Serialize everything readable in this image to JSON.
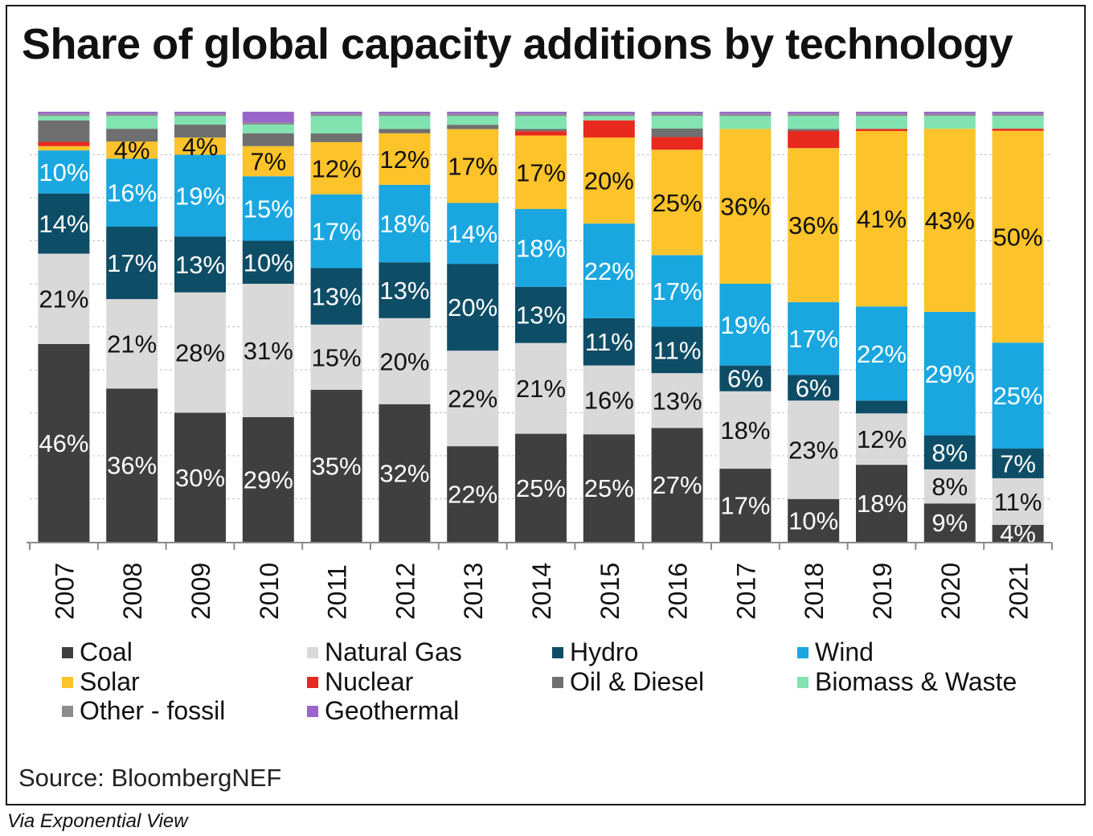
{
  "title": "Share of global capacity additions by technology",
  "source": "Source: BloombergNEF",
  "via": "Via Exponential View",
  "colors": {
    "Coal": "#3f3f3f",
    "Natural Gas": "#d9d9d9",
    "Hydro": "#0e4d66",
    "Wind": "#1aa7e0",
    "Solar": "#fdc32a",
    "Nuclear": "#e8291e",
    "Oil & Diesel": "#6f6f6f",
    "Biomass & Waste": "#82e3b1",
    "Other - fossil": "#8c8c8c",
    "Geothermal": "#9966cc"
  },
  "chart_data": {
    "type": "bar",
    "stacked": true,
    "title": "Share of global capacity additions by technology",
    "ylim": [
      0,
      100
    ],
    "grid": true,
    "legend": "bottom",
    "categories": [
      "2007",
      "2008",
      "2009",
      "2010",
      "2011",
      "2012",
      "2013",
      "2014",
      "2015",
      "2016",
      "2017",
      "2018",
      "2019",
      "2020",
      "2021"
    ],
    "series": [
      {
        "name": "Coal",
        "values": [
          46,
          36,
          30,
          29,
          35,
          32,
          22,
          25,
          25,
          27,
          17,
          10,
          18,
          9,
          4
        ]
      },
      {
        "name": "Natural Gas",
        "values": [
          21,
          21,
          28,
          31,
          15,
          20,
          22,
          21,
          16,
          13,
          18,
          23,
          12,
          8,
          11
        ]
      },
      {
        "name": "Hydro",
        "values": [
          14,
          17,
          13,
          10,
          13,
          13,
          20,
          13,
          11,
          11,
          6,
          6,
          3,
          8,
          7
        ]
      },
      {
        "name": "Wind",
        "values": [
          10,
          16,
          19,
          15,
          17,
          18,
          14,
          18,
          22,
          17,
          19,
          17,
          22,
          29,
          25
        ]
      },
      {
        "name": "Solar",
        "values": [
          1,
          4,
          4,
          7,
          12,
          12,
          17,
          17,
          20,
          25,
          36,
          36,
          41,
          43,
          50
        ]
      },
      {
        "name": "Nuclear",
        "values": [
          1,
          0,
          0,
          0,
          0,
          0,
          0,
          1,
          4,
          3,
          0,
          4,
          0.5,
          0,
          0.5
        ]
      },
      {
        "name": "Oil & Diesel",
        "values": [
          5,
          3,
          3,
          3,
          2,
          1,
          1,
          0.5,
          0,
          2,
          0,
          0.5,
          0,
          0,
          0
        ]
      },
      {
        "name": "Biomass & Waste",
        "values": [
          1,
          3,
          2,
          2,
          4,
          3,
          2,
          3,
          1,
          3,
          3,
          3,
          3,
          3,
          3
        ]
      },
      {
        "name": "Other - fossil",
        "values": [
          0.5,
          0.5,
          0.5,
          0.5,
          0.5,
          0.5,
          0.5,
          0.5,
          0.5,
          0.5,
          0.5,
          0.5,
          0.5,
          0.5,
          0.5
        ]
      },
      {
        "name": "Geothermal",
        "values": [
          0.5,
          0.5,
          0.5,
          2.5,
          0.5,
          0.5,
          0.5,
          0.5,
          0.5,
          0.5,
          0.5,
          0.5,
          0.5,
          0.5,
          0.5
        ]
      }
    ],
    "data_labels": {
      "Coal": [
        "46%",
        "36%",
        "30%",
        "29%",
        "35%",
        "32%",
        "22%",
        "25%",
        "25%",
        "27%",
        "17%",
        "10%",
        "18%",
        "9%",
        "4%"
      ],
      "Natural Gas": [
        "21%",
        "21%",
        "28%",
        "31%",
        "15%",
        "20%",
        "22%",
        "21%",
        "16%",
        "13%",
        "18%",
        "23%",
        "12%",
        "8%",
        "11%"
      ],
      "Hydro": [
        "14%",
        "17%",
        "13%",
        "10%",
        "13%",
        "13%",
        "20%",
        "13%",
        "11%",
        "11%",
        "6%",
        "6%",
        "",
        "8%",
        "7%"
      ],
      "Wind": [
        "10%",
        "16%",
        "19%",
        "15%",
        "17%",
        "18%",
        "14%",
        "18%",
        "22%",
        "17%",
        "19%",
        "17%",
        "22%",
        "29%",
        "25%"
      ],
      "Solar": [
        "",
        "4%",
        "4%",
        "7%",
        "12%",
        "12%",
        "17%",
        "17%",
        "20%",
        "25%",
        "36%",
        "36%",
        "41%",
        "43%",
        "50%"
      ]
    },
    "legend_items": [
      "Coal",
      "Natural Gas",
      "Hydro",
      "Wind",
      "Solar",
      "Nuclear",
      "Oil & Diesel",
      "Biomass & Waste",
      "Other - fossil",
      "Geothermal"
    ]
  }
}
